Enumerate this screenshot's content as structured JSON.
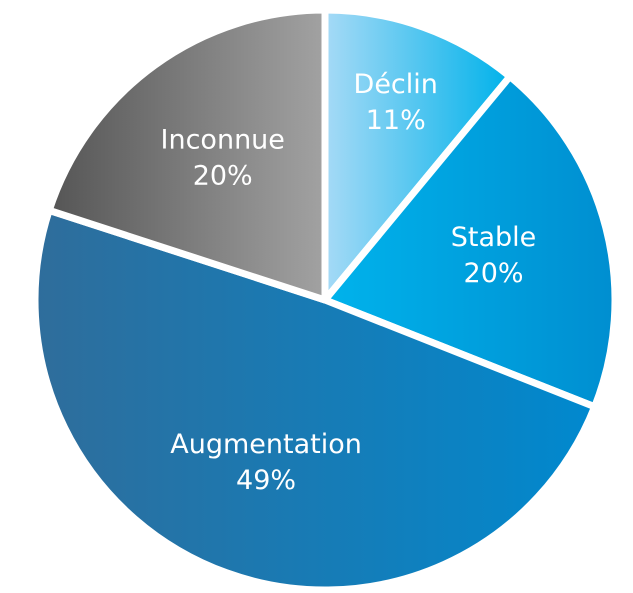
{
  "chart_data": {
    "type": "pie",
    "categories": [
      "Déclin",
      "Stable",
      "Augmentation",
      "Inconnue"
    ],
    "values": [
      11,
      20,
      49,
      20
    ],
    "value_labels": [
      "11%",
      "20%",
      "49%",
      "20%"
    ],
    "colors": [
      [
        "#a6daf6",
        "#00b2ea"
      ],
      [
        "#00b3ec",
        "#008ed0"
      ],
      [
        "#2f6d9b",
        "#0089cf"
      ],
      [
        "#555555",
        "#a2a2a2"
      ]
    ]
  }
}
